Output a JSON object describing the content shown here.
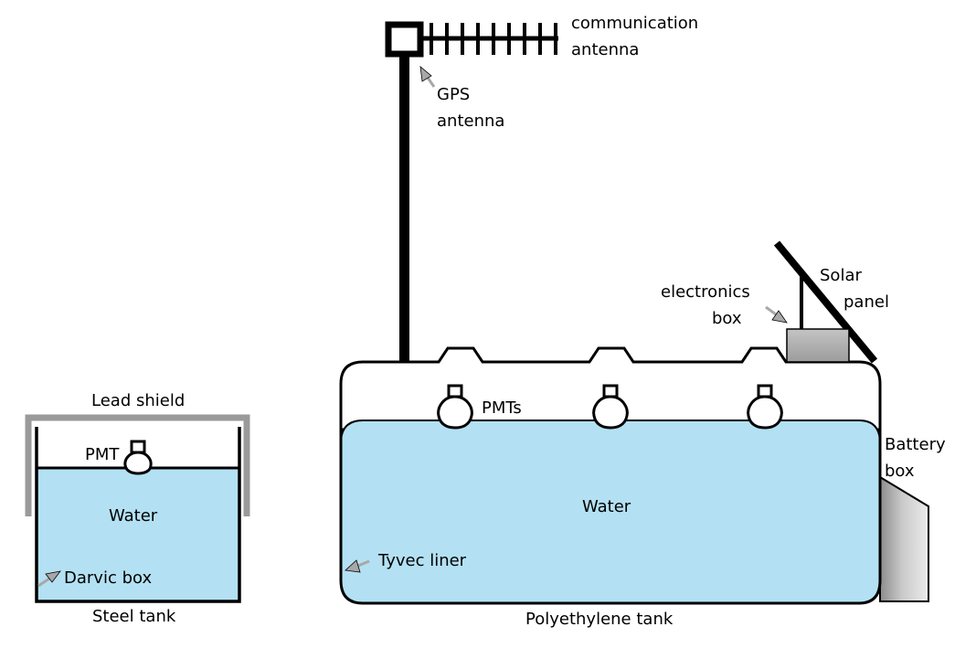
{
  "small_detector": {
    "lead_shield_label": "Lead shield",
    "pmt_label": "PMT",
    "water_label": "Water",
    "darvic_label": "Darvic box",
    "tank_label": "Steel tank"
  },
  "large_detector": {
    "antenna_label_line1": "communication",
    "antenna_label_line2": "antenna",
    "gps_label_line1": "GPS",
    "gps_label_line2": "antenna",
    "electronics_label_line1": "electronics",
    "electronics_label_line2": "box",
    "solar_label_line1": "Solar",
    "solar_label_line2": "panel",
    "pmts_label": "PMTs",
    "battery_label_line1": "Battery",
    "battery_label_line2": "box",
    "water_label": "Water",
    "liner_label": "Tyvec liner",
    "tank_label": "Polyethylene tank"
  },
  "colors": {
    "water": "#b3e1f3",
    "outline": "#000000",
    "shield": "#9a9a9a",
    "box_gray": "#b0b0b0",
    "arrow_gray": "#a8a8a8"
  }
}
